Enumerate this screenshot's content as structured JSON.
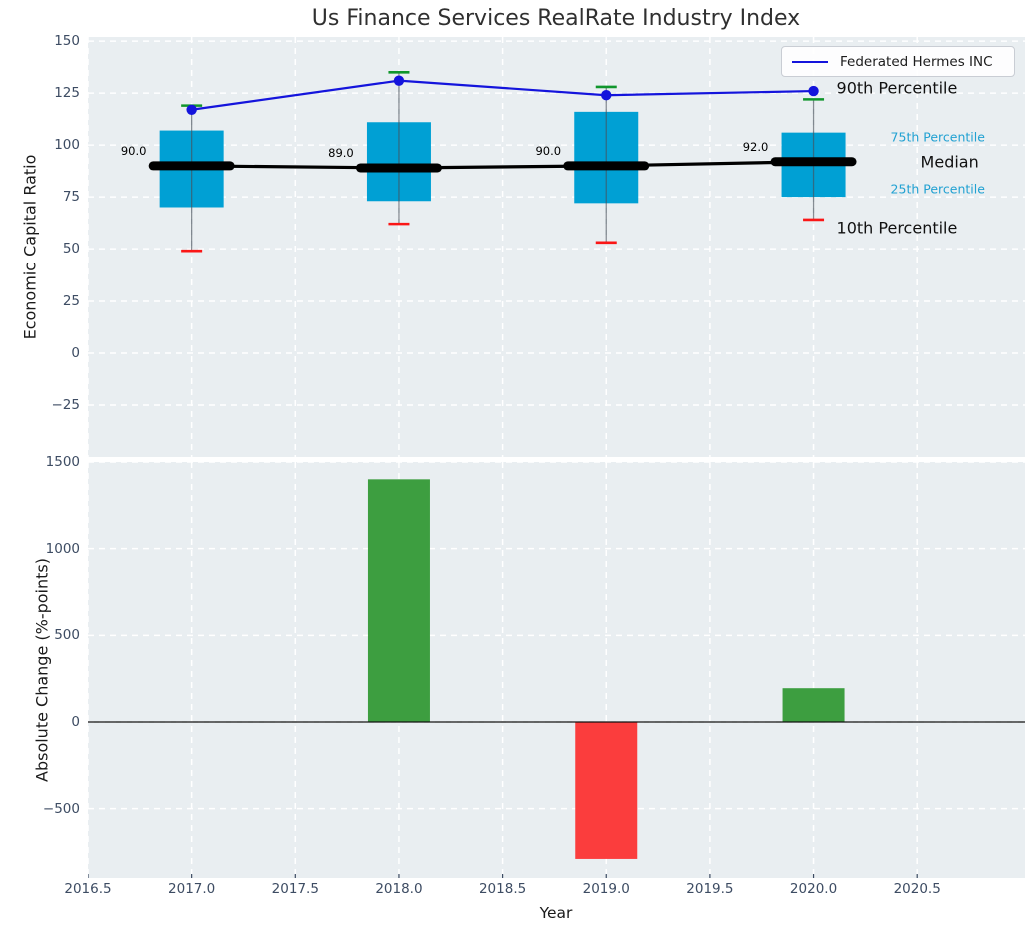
{
  "title": "Us Finance Services RealRate Industry Index",
  "legend": {
    "label": "Federated Hermes INC"
  },
  "styles": {
    "axes_bg": "#e9eef1",
    "grid_color": "#ffffff",
    "tick_color": "#3d4c63",
    "box_color": "#00a0d4",
    "company_line_color": "#1414dc",
    "median_color": "#000000",
    "cap_90_color": "#10962c",
    "cap_10_color": "#fa1616",
    "whisker_color": "rgba(70,80,90,0.65)",
    "percentile_label_color": "#21a1d2",
    "bar_green": "#3d9e40",
    "bar_red": "#fb3d3d"
  },
  "chart_data": [
    {
      "type": "boxplot+line",
      "title": "Us Finance Services RealRate Industry Index",
      "ylabel": "Economic Capital Ratio",
      "x": [
        2017,
        2018,
        2019,
        2020
      ],
      "xlim": [
        2016.5,
        2021.02
      ],
      "ylim": [
        -50,
        152
      ],
      "yticks": [
        150,
        125,
        100,
        75,
        50,
        25,
        0,
        -25
      ],
      "xticks": [
        2016.5,
        2017.0,
        2017.5,
        2018.0,
        2018.5,
        2019.0,
        2019.5,
        2020.0,
        2020.5
      ],
      "grid": "white dashed, horizontal + vertical",
      "legend_position": "upper right",
      "series": [
        {
          "name": "Federated Hermes INC",
          "type": "line",
          "values": [
            117,
            131,
            124,
            126
          ]
        },
        {
          "name": "90th Percentile",
          "type": "whisker-cap",
          "values": [
            119,
            135,
            128,
            122
          ]
        },
        {
          "name": "75th Percentile",
          "type": "box-top",
          "values": [
            107,
            111,
            116,
            106
          ]
        },
        {
          "name": "Median",
          "type": "line",
          "values": [
            90,
            89,
            90,
            92
          ],
          "point_labels": [
            "90.0",
            "89.0",
            "90.0",
            "92.0"
          ]
        },
        {
          "name": "25th Percentile",
          "type": "box-bottom",
          "values": [
            70,
            73,
            72,
            75
          ]
        },
        {
          "name": "10th Percentile",
          "type": "whisker-cap",
          "values": [
            49,
            62,
            53,
            64
          ]
        }
      ],
      "right_labels": [
        {
          "text": "90th Percentile",
          "value": 127.5,
          "size": "large"
        },
        {
          "text": "75th Percentile",
          "value": 104,
          "size": "small"
        },
        {
          "text": "Median",
          "value": 92,
          "size": "large"
        },
        {
          "text": "25th Percentile",
          "value": 79,
          "size": "small"
        },
        {
          "text": "10th Percentile",
          "value": 60,
          "size": "large"
        }
      ]
    },
    {
      "type": "bar",
      "ylabel": "Absolute Change (%-points)",
      "xlabel": "Year",
      "x": [
        2018,
        2019,
        2020
      ],
      "values": [
        1400,
        -790,
        195
      ],
      "bar_color_rule": "green if positive, red if negative",
      "xlim": [
        2016.5,
        2021.02
      ],
      "ylim": [
        -900,
        1500
      ],
      "yticks": [
        1500,
        1000,
        500,
        0,
        -500
      ],
      "xticks": [
        2016.5,
        2017.0,
        2017.5,
        2018.0,
        2018.5,
        2019.0,
        2019.5,
        2020.0,
        2020.5
      ],
      "zero_line": true
    }
  ]
}
